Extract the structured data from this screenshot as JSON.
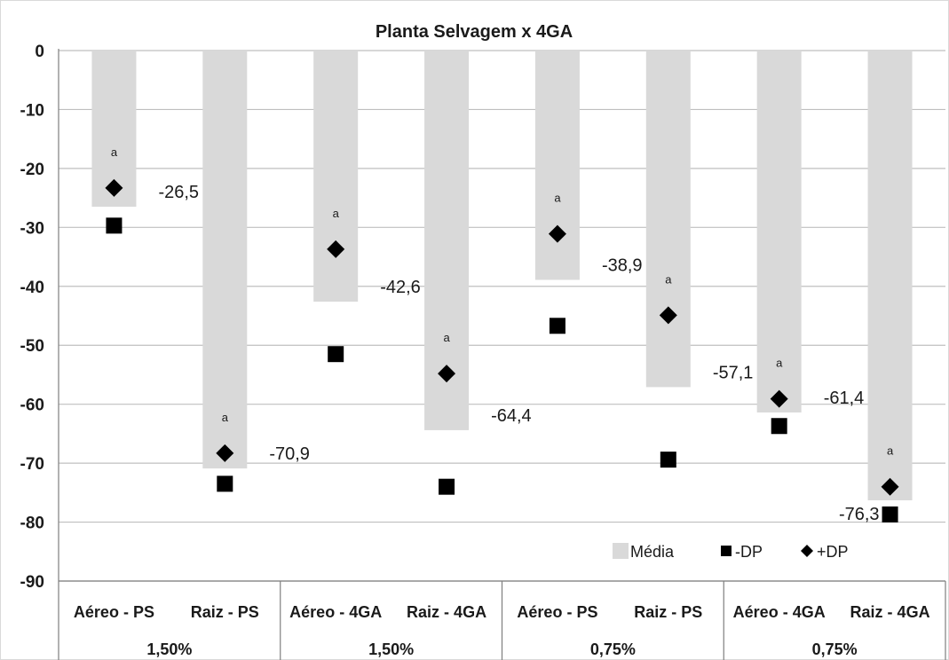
{
  "chart_data": {
    "type": "bar",
    "title": "Planta Selvagem x 4GA",
    "xlabel": "",
    "ylabel": "",
    "ylim": [
      -90,
      0
    ],
    "yticks": [
      0,
      -10,
      -20,
      -30,
      -40,
      -50,
      -60,
      -70,
      -80,
      -90
    ],
    "ytick_labels": [
      "0",
      "-10",
      "-20",
      "-30",
      "-40",
      "-50",
      "-60",
      "-70",
      "-80",
      "-90"
    ],
    "grid": true,
    "legend_position": "bottom-right",
    "categories": [
      "Aéreo - PS",
      "Raiz - PS",
      "Aéreo - 4GA",
      "Raiz - 4GA",
      "Aéreo - PS",
      "Raiz - PS",
      "Aéreo - 4GA",
      "Raiz - 4GA"
    ],
    "groups": [
      {
        "label": "1,50%",
        "categories": [
          0,
          1
        ]
      },
      {
        "label": "1,50%",
        "categories": [
          2,
          3
        ]
      },
      {
        "label": "0,75%",
        "categories": [
          4,
          5
        ]
      },
      {
        "label": "0,75%",
        "categories": [
          6,
          7
        ]
      }
    ],
    "series": [
      {
        "name": "Média",
        "marker": "bar",
        "values": [
          -26.5,
          -70.9,
          -42.6,
          -64.4,
          -38.9,
          -57.1,
          -61.4,
          -76.3
        ]
      },
      {
        "name": "-DP",
        "marker": "square",
        "values": [
          -29.7,
          -73.5,
          -51.5,
          -74.0,
          -46.7,
          -69.4,
          -63.7,
          -78.7
        ]
      },
      {
        "name": "+DP",
        "marker": "diamond",
        "values": [
          -23.3,
          -68.3,
          -33.7,
          -54.8,
          -31.1,
          -44.9,
          -59.1,
          -74.0
        ]
      }
    ],
    "data_labels": [
      "-26,5",
      "-70,9",
      "-42,6",
      "-64,4",
      "-38,9",
      "-57,1",
      "-61,4",
      "-76,3"
    ],
    "significance_labels": [
      "a",
      "a",
      "a",
      "a",
      "a",
      "a",
      "a",
      "a"
    ],
    "colors": {
      "bar": "#d9d9d9",
      "marker": "#000000",
      "grid": "#bfbfbf",
      "axis": "#7f7f7f"
    }
  }
}
